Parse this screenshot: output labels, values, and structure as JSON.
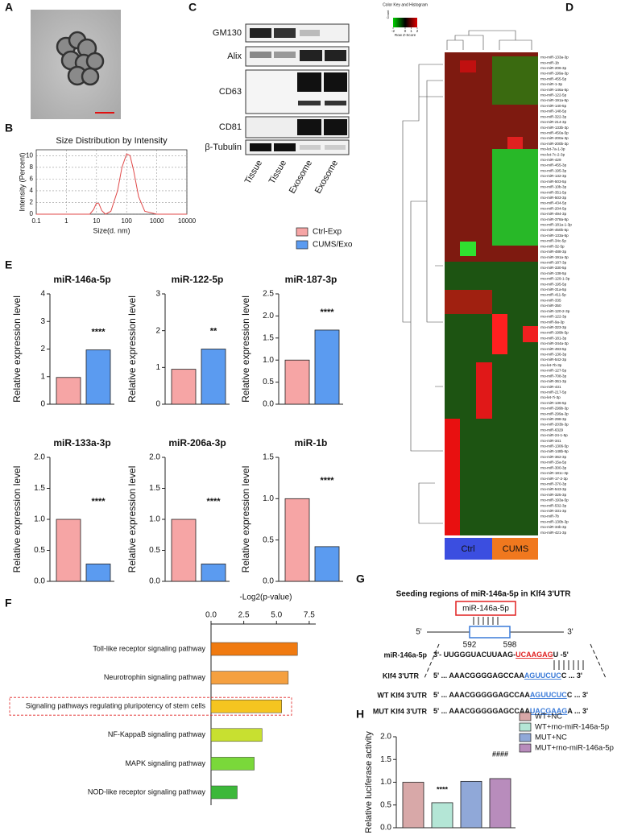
{
  "panel_labels": [
    "A",
    "B",
    "C",
    "D",
    "E",
    "F",
    "G",
    "H"
  ],
  "blot": {
    "proteins": [
      "GM130",
      "Alix",
      "CD63",
      "CD81",
      "β-Tubulin"
    ],
    "lanes": [
      "Tissue",
      "Tissue",
      "Exosome",
      "Exosome"
    ]
  },
  "heatmap": {
    "key": {
      "title": "Color Key and Histogram",
      "ylabel": "Count",
      "xlabel": "Row Z-Score",
      "ticks": [
        -2,
        0,
        1,
        2
      ]
    },
    "groups": [
      "Ctrl",
      "CUMS"
    ],
    "rows": [
      "rno-miR-133a-3p",
      "rno-miR-1b",
      "rno-miR-206-3p",
      "rno-miR-199a-3p",
      "rno-miR-455-5p",
      "rno-miR-1-3p",
      "rno-miR-146a-5p",
      "rno-miR-122-5p",
      "rno-miR-191a-5p",
      "rno-miR-140-5p",
      "rno-miR-148-5p",
      "rno-miR-322-3p",
      "rno-miR-214-3p",
      "rno-miR-133b-3p",
      "rno-miR-450a-5p",
      "rno-miR-200a-3p",
      "rno-miR-200b-3p",
      "rno-let-7a-1-3p",
      "rno-let-7c-2-3p",
      "rno-miR-429",
      "rno-miR-455-3p",
      "rno-miR-195-3p",
      "rno-miR-132-3p",
      "rno-miR-503-5p",
      "rno-miR-10b-3p",
      "rno-miR-351-5p",
      "rno-miR-503-3p",
      "rno-miR-434-5p",
      "rno-miR-204-5p",
      "rno-miR-494-3p",
      "rno-miR-378a-5p",
      "rno-miR-181a-1-3p",
      "rno-miR-450b-5p",
      "rno-miR-133a-5p",
      "rno-miR-34c-5p",
      "rno-miR-32-5p",
      "rno-miR-488-3p",
      "rno-miR-191a-3p",
      "rno-miR-187-3p",
      "rno-miR-330-5p",
      "rno-miR-138-5p",
      "rno-miR-129-1-3p",
      "rno-miR-195-5p",
      "rno-miR-31a-5p",
      "rno-miR-411-5p",
      "rno-miR-335",
      "rno-miR-350",
      "rno-miR-120-2-3p",
      "rno-miR-122-3p",
      "rno-miR-9a-3p",
      "rno-miR-323-3p",
      "rno-miR-199b-5p",
      "rno-miR-181-3p",
      "rno-miR-344a-3p",
      "rno-miR-493-5p",
      "rno-miR-136-3p",
      "rno-miR-542-3p",
      "rno-let-7b-3p",
      "rno-miR-127-5p",
      "rno-miR-708-3p",
      "rno-miR-361-3p",
      "rno-miR-431",
      "rno-miR-217-5p",
      "rno-let-7i-3p",
      "rno-miR-136-5p",
      "rno-miR-299b-3p",
      "rno-miR-299a-3p",
      "rno-miR-298-3p",
      "rno-miR-203b-3p",
      "rno-miR-6329",
      "rno-miR-24-1-5p",
      "rno-miR-341",
      "rno-miR-1306-5p",
      "rno-miR-148b-5p",
      "rno-miR-362-3p",
      "rno-miR-15a-5p",
      "rno-miR-300-3p",
      "rno-miR-181c-3p",
      "rno-miR-17-2-3p",
      "rno-miR-370-3p",
      "rno-miR-543-3p",
      "rno-miR-325-3p",
      "rno-miR-193a-5p",
      "rno-miR-532-3p",
      "rno-miR-331-3p",
      "rno-miR-7b",
      "rno-miR-130b-3p",
      "rno-miR-34b-3p",
      "rno-miR-421-3p"
    ]
  },
  "legend_e": {
    "series": [
      {
        "name": "Ctrl-Exp",
        "color": "#f6a5a5"
      },
      {
        "name": "CUMS/Exo",
        "color": "#5b9bf0"
      }
    ]
  },
  "chart_data": [
    {
      "type": "line",
      "title": "Size Distribution by Intensity",
      "xlabel": "Size(d. nm)",
      "ylabel": "Intensity (Percent)",
      "log_x": true,
      "color": "#e04848",
      "x": [
        0.1,
        1,
        6,
        8,
        10,
        12,
        15,
        20,
        30,
        50,
        70,
        100,
        130,
        170,
        250,
        400,
        1000,
        10000
      ],
      "values": [
        0,
        0,
        0,
        0.8,
        1.9,
        1.8,
        0.6,
        0,
        0.5,
        4,
        8,
        10.3,
        10,
        7.5,
        3,
        0.5,
        0,
        0
      ],
      "xlim": [
        0.1,
        10000
      ],
      "xticks": [
        0.1,
        1,
        10,
        100,
        1000,
        10000
      ],
      "ylim": [
        0,
        11
      ],
      "yticks": [
        0,
        2,
        4,
        6,
        8,
        10
      ]
    },
    {
      "type": "bar",
      "title": "miR-146a-5p",
      "ylabel": "Relative expression level",
      "values": [
        0.97,
        1.97
      ],
      "ylim": [
        0,
        4
      ],
      "yticks": [
        0,
        1,
        2,
        3,
        4
      ],
      "annotation": "****"
    },
    {
      "type": "bar",
      "title": "miR-122-5p",
      "ylabel": "Relative expression level",
      "values": [
        0.95,
        1.5
      ],
      "ylim": [
        0,
        3
      ],
      "yticks": [
        0,
        1,
        2,
        3
      ],
      "annotation": "**"
    },
    {
      "type": "bar",
      "title": "miR-187-3p",
      "ylabel": "Relative expression level",
      "values": [
        1.0,
        1.68
      ],
      "ylim": [
        0,
        2.5
      ],
      "yticks": [
        {
          "value": 0,
          "label": "0.0"
        },
        0.5,
        {
          "value": 1,
          "label": "1.0"
        },
        1.5,
        {
          "value": 2,
          "label": "2.0"
        },
        2.5
      ],
      "annotation": "****"
    },
    {
      "type": "bar",
      "title": "miR-133a-3p",
      "ylabel": "Relative expression level",
      "values": [
        1.0,
        0.28
      ],
      "ylim": [
        0,
        2
      ],
      "yticks": [
        {
          "value": 0,
          "label": "0.0"
        },
        0.5,
        {
          "value": 1,
          "label": "1.0"
        },
        1.5,
        {
          "value": 2,
          "label": "2.0"
        }
      ],
      "annotation": "****"
    },
    {
      "type": "bar",
      "title": "miR-206a-3p",
      "ylabel": "Relative expression level",
      "values": [
        1.0,
        0.28
      ],
      "ylim": [
        0,
        2
      ],
      "yticks": [
        {
          "value": 0,
          "label": "0.0"
        },
        0.5,
        {
          "value": 1,
          "label": "1.0"
        },
        1.5,
        {
          "value": 2,
          "label": "2.0"
        }
      ],
      "annotation": "****"
    },
    {
      "type": "bar",
      "title": "miR-1b",
      "ylabel": "Relative expression level",
      "values": [
        1.0,
        0.42
      ],
      "ylim": [
        0,
        1.5
      ],
      "yticks": [
        {
          "value": 0,
          "label": "0.0"
        },
        0.5,
        {
          "value": 1,
          "label": "1.0"
        },
        1.5
      ],
      "annotation": "****"
    },
    {
      "type": "hbar",
      "xlabel": "-Log2(p-value)",
      "categories": [
        "Toll-like receptor signaling pathway",
        "Neurotrophin signaling pathway",
        "Signaling pathways regulating pluripotency of stem cells",
        "NF-KappaB signaling pathway",
        "MAPK signaling pathway",
        "NOD-like receptor signaling pathway"
      ],
      "values": [
        6.6,
        5.9,
        5.4,
        3.9,
        3.3,
        2.0
      ],
      "colors": [
        "#f07a10",
        "#f5a040",
        "#f5c520",
        "#c8e030",
        "#7ad83a",
        "#3cb83a"
      ],
      "highlight": 2,
      "xlim": [
        0,
        8
      ],
      "xticks": [
        {
          "value": 0,
          "label": "0.0"
        },
        2.5,
        {
          "value": 5,
          "label": "5.0"
        },
        7.5
      ]
    },
    {
      "type": "vbar",
      "ylabel": "Relative luciferase activity",
      "categories": [
        "WT+NC",
        "WT+rno-miR-146a-5p",
        "MUT+NC",
        "MUT+rno-miR-146a-5p"
      ],
      "values": [
        1.0,
        0.55,
        1.02,
        1.08
      ],
      "colors": [
        "#d8a8a8",
        "#b4e6d6",
        "#90a8d8",
        "#b88cbc"
      ],
      "annotations": [
        {
          "index": 1,
          "text": "****"
        },
        {
          "index": 3,
          "text": "####"
        }
      ],
      "ylim": [
        0,
        2
      ],
      "yticks": [
        {
          "value": 0,
          "label": "0.0"
        },
        0.5,
        {
          "value": 1,
          "label": "1.0"
        },
        1.5,
        {
          "value": 2,
          "label": "2.0"
        }
      ]
    }
  ],
  "seed": {
    "title": "Seeding regions of miR-146a-5p in Klf4 3'UTR",
    "probe": "miR-146a-5p",
    "five": "5'",
    "three": "3'",
    "pos_start": 592,
    "pos_end": 598,
    "rows": [
      {
        "label": "miR-146a-5p",
        "seq": [
          "3'- UUGGGUACUUAAG-",
          "UCAAGAG",
          "U -5'"
        ]
      },
      {
        "label": "Klf4 3'UTR",
        "seq": [
          "5' ... AAACGGGGAGCCAA",
          "AGUUCUC",
          "C ... 3'"
        ]
      },
      {
        "label": "WT Klf4 3'UTR",
        "seq": [
          "5' ... AAACGGGGGAGCCAA",
          "AGUUCUC",
          "C ... 3'"
        ]
      },
      {
        "label": "MUT Klf4 3'UTR",
        "seq": [
          "5' ... AAACGGGGGAGCCAA",
          "UACGAAG",
          "A ... 3'"
        ]
      }
    ]
  }
}
